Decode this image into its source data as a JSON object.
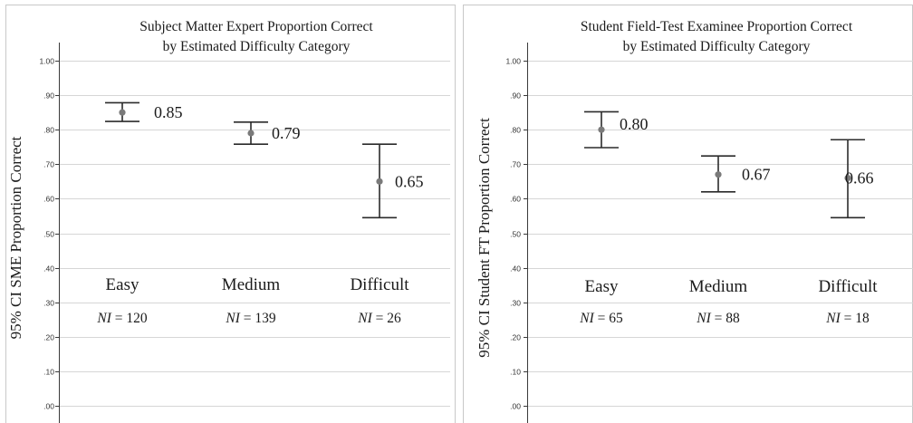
{
  "chart_data": [
    {
      "type": "errorbar",
      "title_lines": [
        "Subject Matter Expert Proportion Correct",
        "by Estimated Difficulty Category"
      ],
      "ylabel": "95% CI SME Proportion Correct",
      "ylim": [
        0,
        1
      ],
      "yticks": [
        ".00",
        ".10",
        ".20",
        ".30",
        ".40",
        ".50",
        ".60",
        ".70",
        ".80",
        ".90",
        "1.00"
      ],
      "grid": true,
      "categories": [
        "Easy",
        "Medium",
        "Difficult"
      ],
      "means": [
        0.85,
        0.79,
        0.65
      ],
      "ci_lower": [
        0.824,
        0.758,
        0.545
      ],
      "ci_upper": [
        0.878,
        0.822,
        0.758
      ],
      "value_labels": [
        "0.85",
        "0.79",
        "0.65"
      ],
      "ni_prefix": "NI",
      "ni_counts": [
        "= 120",
        "= 139",
        "= 26"
      ]
    },
    {
      "type": "errorbar",
      "title_lines": [
        "Student Field-Test Examinee Proportion Correct",
        "by Estimated Difficulty Category"
      ],
      "ylabel": "95% CI Student FT Proportion Correct",
      "ylim": [
        0,
        1
      ],
      "yticks": [
        ".00",
        ".10",
        ".20",
        ".30",
        ".40",
        ".50",
        ".60",
        ".70",
        ".80",
        ".90",
        "1.00"
      ],
      "grid": true,
      "categories": [
        "Easy",
        "Medium",
        "Difficult"
      ],
      "means": [
        0.8,
        0.67,
        0.66
      ],
      "ci_lower": [
        0.748,
        0.62,
        0.545
      ],
      "ci_upper": [
        0.852,
        0.724,
        0.771
      ],
      "value_labels": [
        "0.80",
        "0.67",
        "0.66"
      ],
      "ni_prefix": "NI",
      "ni_counts": [
        "= 65",
        "= 88",
        "= 18"
      ]
    }
  ]
}
